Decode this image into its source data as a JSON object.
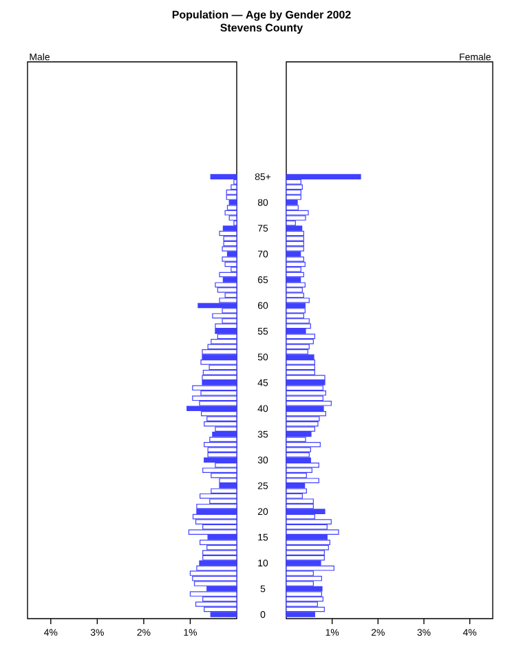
{
  "chart_data": [
    {
      "type": "bar",
      "orientation": "horizontal",
      "title": "Population — Age by Gender 2002",
      "subtitle": "Stevens County",
      "categories": [
        "85+",
        null,
        null,
        null,
        null,
        "80",
        null,
        null,
        null,
        null,
        "75",
        null,
        null,
        null,
        null,
        "70",
        null,
        null,
        null,
        null,
        "65",
        null,
        null,
        null,
        null,
        "60",
        null,
        null,
        null,
        null,
        "55",
        null,
        null,
        null,
        null,
        "50",
        null,
        null,
        null,
        null,
        "45",
        null,
        null,
        null,
        null,
        "40",
        null,
        null,
        null,
        null,
        "35",
        null,
        null,
        null,
        null,
        "30",
        null,
        null,
        null,
        null,
        "25",
        null,
        null,
        null,
        null,
        "20",
        null,
        null,
        null,
        null,
        "15",
        null,
        null,
        null,
        null,
        "10",
        null,
        null,
        null,
        null,
        "5",
        null,
        null,
        null,
        null,
        "0"
      ],
      "series": [
        {
          "name": "Male",
          "color": "#4040ff",
          "colors": [
            "#4040ff",
            "#ffffff",
            "#ffffff",
            "#ffffff",
            "#ffffff",
            "#4040ff",
            "#ffffff",
            "#ffffff",
            "#ffffff",
            "#ffffff",
            "#4040ff",
            "#ffffff",
            "#ffffff",
            "#ffffff",
            "#ffffff",
            "#4040ff",
            "#ffffff",
            "#ffffff",
            "#ffffff",
            "#ffffff",
            "#4040ff",
            "#ffffff",
            "#ffffff",
            "#ffffff",
            "#ffffff",
            "#4040ff",
            "#ffffff",
            "#ffffff",
            "#ffffff",
            "#ffffff",
            "#4040ff",
            "#ffffff",
            "#ffffff",
            "#ffffff",
            "#ffffff",
            "#4040ff",
            "#ffffff",
            "#ffffff",
            "#ffffff",
            "#ffffff",
            "#4040ff",
            "#ffffff",
            "#ffffff",
            "#ffffff",
            "#ffffff",
            "#4040ff",
            "#ffffff",
            "#ffffff",
            "#ffffff",
            "#ffffff",
            "#4040ff",
            "#ffffff",
            "#ffffff",
            "#ffffff",
            "#ffffff",
            "#4040ff",
            "#ffffff",
            "#ffffff",
            "#ffffff",
            "#ffffff",
            "#4040ff",
            "#ffffff",
            "#ffffff",
            "#ffffff",
            "#ffffff",
            "#4040ff",
            "#ffffff",
            "#ffffff",
            "#ffffff",
            "#ffffff",
            "#4040ff",
            "#ffffff",
            "#ffffff",
            "#ffffff",
            "#ffffff",
            "#4040ff",
            "#ffffff",
            "#ffffff",
            "#ffffff",
            "#ffffff",
            "#4040ff",
            "#ffffff",
            "#ffffff",
            "#ffffff",
            "#ffffff",
            "#4040ff"
          ],
          "values": [
            0.56,
            0.06,
            0.12,
            0.22,
            0.22,
            0.16,
            0.2,
            0.25,
            0.16,
            0.06,
            0.29,
            0.37,
            0.28,
            0.28,
            0.31,
            0.2,
            0.31,
            0.25,
            0.12,
            0.37,
            0.29,
            0.46,
            0.41,
            0.25,
            0.37,
            0.83,
            0.31,
            0.52,
            0.31,
            0.46,
            0.46,
            0.41,
            0.55,
            0.62,
            0.74,
            0.74,
            0.77,
            0.59,
            0.72,
            0.74,
            0.74,
            0.95,
            0.77,
            0.95,
            0.8,
            1.07,
            0.76,
            0.64,
            0.7,
            0.46,
            0.52,
            0.58,
            0.7,
            0.62,
            0.62,
            0.7,
            0.46,
            0.73,
            0.55,
            0.37,
            0.37,
            0.55,
            0.79,
            0.58,
            0.86,
            0.86,
            0.94,
            0.88,
            0.73,
            1.03,
            0.62,
            0.79,
            0.64,
            0.73,
            0.73,
            0.8,
            0.86,
            1.0,
            0.95,
            0.91,
            0.64,
            1.0,
            0.73,
            0.88,
            0.7,
            0.56
          ]
        }
      ],
      "xlim": [
        4.5,
        0
      ],
      "xticks": [
        {
          "value": 1,
          "label": "1%"
        },
        {
          "value": 2,
          "label": "2%"
        },
        {
          "value": 3,
          "label": "3%"
        },
        {
          "value": 4,
          "label": "4%"
        }
      ]
    },
    {
      "type": "bar",
      "orientation": "horizontal",
      "tick_labels": "x",
      "categories": [
        null,
        null,
        null,
        null,
        null,
        null,
        null,
        null,
        null,
        null,
        null,
        null,
        null,
        null,
        null,
        null,
        null,
        null,
        null,
        null,
        null,
        null,
        null,
        null,
        null,
        null,
        null,
        null,
        null,
        null,
        null,
        null,
        null,
        null,
        null,
        null,
        null,
        null,
        null,
        null,
        null,
        null,
        null,
        null,
        null,
        null,
        null,
        null,
        null,
        null,
        null,
        null,
        null,
        null,
        null,
        null,
        null,
        null,
        null,
        null,
        null,
        null,
        null,
        null,
        null,
        null,
        null,
        null,
        null,
        null,
        null,
        null,
        null,
        null,
        null,
        null,
        null,
        null,
        null,
        null,
        null,
        null,
        null,
        null,
        null,
        null
      ],
      "series": [
        {
          "name": "Female",
          "color": "#4040ff",
          "colors": [
            "#4040ff",
            "#ffffff",
            "#ffffff",
            "#ffffff",
            "#ffffff",
            "#4040ff",
            "#ffffff",
            "#ffffff",
            "#ffffff",
            "#ffffff",
            "#4040ff",
            "#ffffff",
            "#ffffff",
            "#ffffff",
            "#ffffff",
            "#4040ff",
            "#ffffff",
            "#ffffff",
            "#ffffff",
            "#ffffff",
            "#4040ff",
            "#ffffff",
            "#ffffff",
            "#ffffff",
            "#ffffff",
            "#4040ff",
            "#ffffff",
            "#ffffff",
            "#ffffff",
            "#ffffff",
            "#4040ff",
            "#ffffff",
            "#ffffff",
            "#ffffff",
            "#ffffff",
            "#4040ff",
            "#ffffff",
            "#ffffff",
            "#ffffff",
            "#ffffff",
            "#4040ff",
            "#ffffff",
            "#ffffff",
            "#ffffff",
            "#ffffff",
            "#4040ff",
            "#ffffff",
            "#ffffff",
            "#ffffff",
            "#ffffff",
            "#4040ff",
            "#ffffff",
            "#ffffff",
            "#ffffff",
            "#ffffff",
            "#4040ff",
            "#ffffff",
            "#ffffff",
            "#ffffff",
            "#ffffff",
            "#4040ff",
            "#ffffff",
            "#ffffff",
            "#ffffff",
            "#ffffff",
            "#4040ff",
            "#ffffff",
            "#ffffff",
            "#ffffff",
            "#ffffff",
            "#4040ff",
            "#ffffff",
            "#ffffff",
            "#ffffff",
            "#ffffff",
            "#4040ff",
            "#ffffff",
            "#ffffff",
            "#ffffff",
            "#ffffff",
            "#4040ff",
            "#ffffff",
            "#ffffff",
            "#ffffff",
            "#ffffff",
            "#4040ff"
          ],
          "values": [
            1.62,
            0.32,
            0.35,
            0.32,
            0.32,
            0.24,
            0.26,
            0.48,
            0.42,
            0.2,
            0.34,
            0.38,
            0.38,
            0.38,
            0.38,
            0.31,
            0.38,
            0.41,
            0.32,
            0.38,
            0.31,
            0.41,
            0.35,
            0.38,
            0.5,
            0.41,
            0.41,
            0.38,
            0.5,
            0.53,
            0.42,
            0.62,
            0.59,
            0.5,
            0.47,
            0.6,
            0.62,
            0.62,
            0.62,
            0.84,
            0.84,
            0.8,
            0.86,
            0.8,
            0.98,
            0.81,
            0.86,
            0.72,
            0.69,
            0.62,
            0.54,
            0.42,
            0.74,
            0.53,
            0.5,
            0.53,
            0.71,
            0.56,
            0.44,
            0.71,
            0.4,
            0.44,
            0.35,
            0.59,
            0.59,
            0.84,
            0.62,
            0.98,
            0.89,
            1.14,
            0.89,
            0.95,
            0.92,
            0.83,
            0.83,
            0.75,
            1.04,
            0.59,
            0.77,
            0.59,
            0.78,
            0.77,
            0.8,
            0.68,
            0.83,
            0.62
          ]
        }
      ],
      "xlim": [
        0,
        4.5
      ],
      "xticks": [
        {
          "value": 1,
          "label": "1%"
        },
        {
          "value": 2,
          "label": "2%"
        },
        {
          "value": 3,
          "label": "3%"
        },
        {
          "value": 4,
          "label": "4%"
        }
      ]
    }
  ]
}
